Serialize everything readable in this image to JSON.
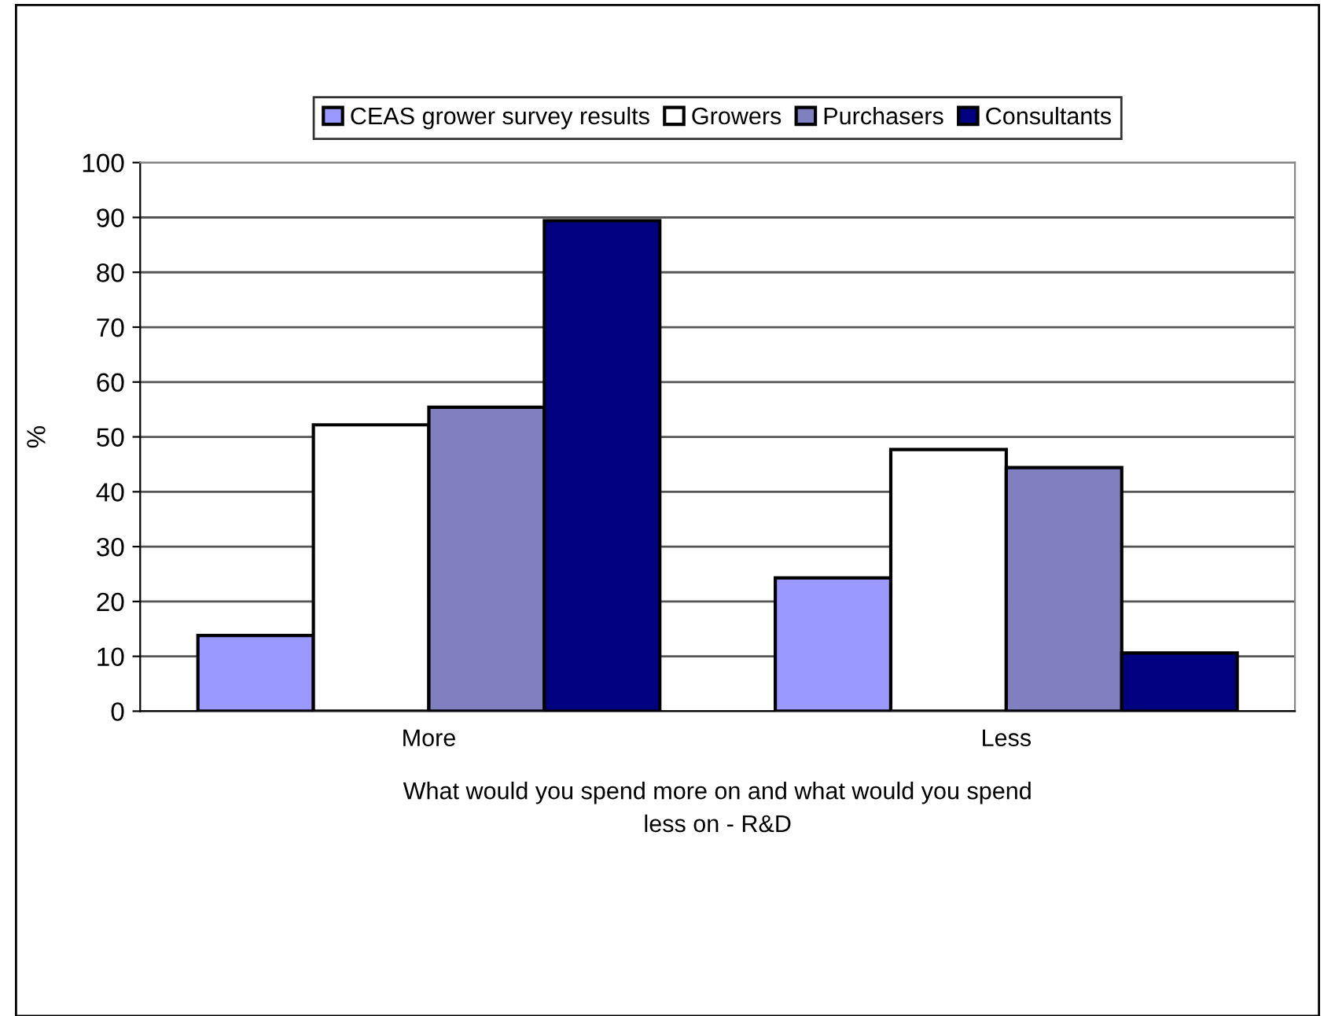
{
  "chart_data": {
    "type": "bar",
    "xlabel": "What would you spend more on and what would you spend\nless on - R&D",
    "ylabel": "%",
    "categories": [
      "More",
      "Less"
    ],
    "series": [
      {
        "name": "CEAS grower survey results",
        "color": "#9999ff",
        "values": [
          13.8,
          24.3
        ]
      },
      {
        "name": "Growers",
        "color": "#ffffff",
        "values": [
          52.2,
          47.7
        ]
      },
      {
        "name": "Purchasers",
        "color": "#8080c0",
        "values": [
          55.4,
          44.4
        ]
      },
      {
        "name": "Consultants",
        "color": "#000080",
        "values": [
          89.4,
          10.6
        ]
      }
    ],
    "ylim": [
      0,
      100
    ],
    "yticks": [
      0,
      10,
      20,
      30,
      40,
      50,
      60,
      70,
      80,
      90,
      100
    ],
    "grid": "y",
    "legend": "top"
  }
}
